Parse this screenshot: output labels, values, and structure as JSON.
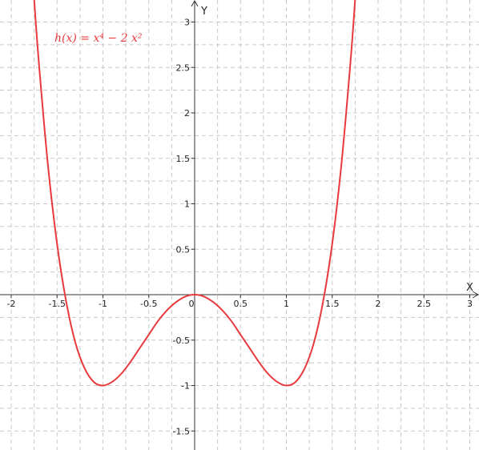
{
  "chart_data": {
    "type": "line",
    "title": "",
    "function_label": "h(x) = x⁴ − 2 x²",
    "xlabel": "X",
    "ylabel": "Y",
    "xlim": [
      -2.1,
      3.1
    ],
    "ylim": [
      -1.7,
      3.25
    ],
    "grid": true,
    "grid_step": 0.25,
    "x_ticks": [
      -2,
      -1.5,
      -1,
      -0.5,
      0,
      0.5,
      1,
      1.5,
      2,
      2.5,
      3
    ],
    "x_tick_labels": [
      "-2",
      "-1.5",
      "-1",
      "-0.5",
      "0",
      "0.5",
      "1",
      "1.5",
      "2",
      "2.5",
      "3"
    ],
    "y_ticks": [
      -1.5,
      -1,
      -0.5,
      0.5,
      1,
      1.5,
      2,
      2.5,
      3
    ],
    "y_tick_labels": [
      "-1.5",
      "-1",
      "-0.5",
      "0.5",
      "1",
      "1.5",
      "2",
      "2.5",
      "3"
    ],
    "series": [
      {
        "name": "h(x) = x⁴ − 2 x²",
        "color": "#e8393d",
        "x": [
          -1.75,
          -1.7,
          -1.6,
          -1.5,
          -1.4,
          -1.3,
          -1.2,
          -1.1,
          -1.0,
          -0.9,
          -0.8,
          -0.7,
          -0.6,
          -0.5,
          -0.4,
          -0.3,
          -0.2,
          -0.1,
          0.0,
          0.1,
          0.2,
          0.3,
          0.4,
          0.5,
          0.6,
          0.7,
          0.8,
          0.9,
          1.0,
          1.1,
          1.2,
          1.3,
          1.4,
          1.5,
          1.6,
          1.7,
          1.75
        ],
        "y": [
          3.25,
          2.57,
          1.43,
          0.56,
          -0.08,
          -0.53,
          -0.81,
          -0.96,
          -1.0,
          -0.96,
          -0.87,
          -0.74,
          -0.59,
          -0.44,
          -0.29,
          -0.17,
          -0.08,
          -0.02,
          0.0,
          -0.02,
          -0.08,
          -0.17,
          -0.29,
          -0.44,
          -0.59,
          -0.74,
          -0.87,
          -0.96,
          -1.0,
          -0.96,
          -0.81,
          -0.53,
          -0.08,
          0.56,
          1.43,
          2.57,
          3.25
        ]
      }
    ]
  }
}
